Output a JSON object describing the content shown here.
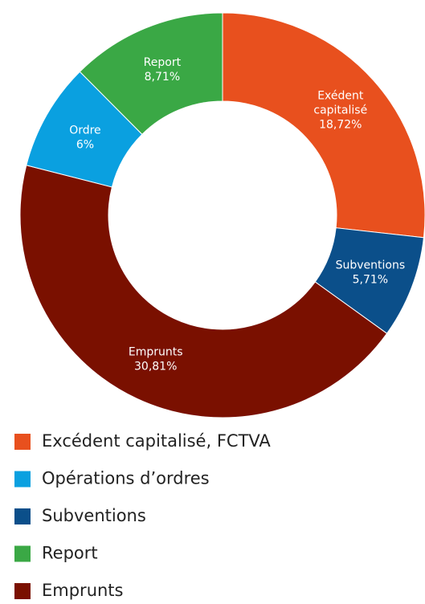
{
  "chart_data": {
    "type": "donut",
    "labels": [
      [
        "Exédent",
        "capitalisé"
      ],
      [
        "Subventions"
      ],
      [
        "Emprunts"
      ],
      [
        "Ordre"
      ],
      [
        "Report"
      ]
    ],
    "values": [
      18.72,
      5.71,
      30.81,
      6,
      8.71
    ],
    "value_labels": [
      "18,72%",
      "5,71%",
      "30,81%",
      "6%",
      "8,71%"
    ],
    "colors": [
      "#e8501e",
      "#0b4f8a",
      "#7a1000",
      "#0aa0e0",
      "#3aa845"
    ],
    "legend": [
      {
        "name": "Excédent capitalisé, FCTVA",
        "color": "#e8501e"
      },
      {
        "name": "Opérations d’ordres",
        "color": "#0aa0e0"
      },
      {
        "name": "Subventions",
        "color": "#0b4f8a"
      },
      {
        "name": "Report",
        "color": "#3aa845"
      },
      {
        "name": "Emprunts",
        "color": "#7a1000"
      }
    ]
  }
}
